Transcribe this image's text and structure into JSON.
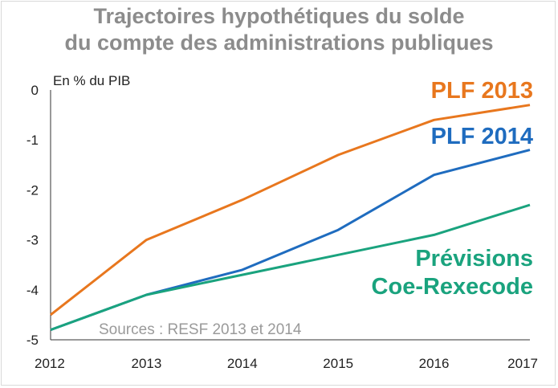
{
  "chart_data": {
    "type": "line",
    "title_lines": [
      "Trajectoires hypothétiques du solde",
      "du compte des administrations publiques"
    ],
    "ylabel": "En % du PIB",
    "source": "Sources : RESF 2013 et 2014",
    "x": [
      2012,
      2013,
      2014,
      2015,
      2016,
      2017
    ],
    "xlim": [
      2012,
      2017
    ],
    "ylim": [
      -5,
      0
    ],
    "yticks": [
      0,
      -1,
      -2,
      -3,
      -4,
      -5
    ],
    "grid": false,
    "series": [
      {
        "name": "PLF 2013",
        "label_lines": [
          "PLF 2013"
        ],
        "color": "#e8771e",
        "values": [
          -4.5,
          -3.0,
          -2.2,
          -1.3,
          -0.6,
          -0.3
        ]
      },
      {
        "name": "PLF 2014",
        "label_lines": [
          "PLF 2014"
        ],
        "color": "#1f6cbf",
        "values": [
          -4.8,
          -4.1,
          -3.6,
          -2.8,
          -1.7,
          -1.2
        ]
      },
      {
        "name": "Prévisions Coe-Rexecode",
        "label_lines": [
          "Prévisions",
          "Coe-Rexecode"
        ],
        "color": "#1aa37e",
        "values": [
          -4.8,
          -4.1,
          -3.7,
          -3.3,
          -2.9,
          -2.3
        ]
      }
    ]
  }
}
